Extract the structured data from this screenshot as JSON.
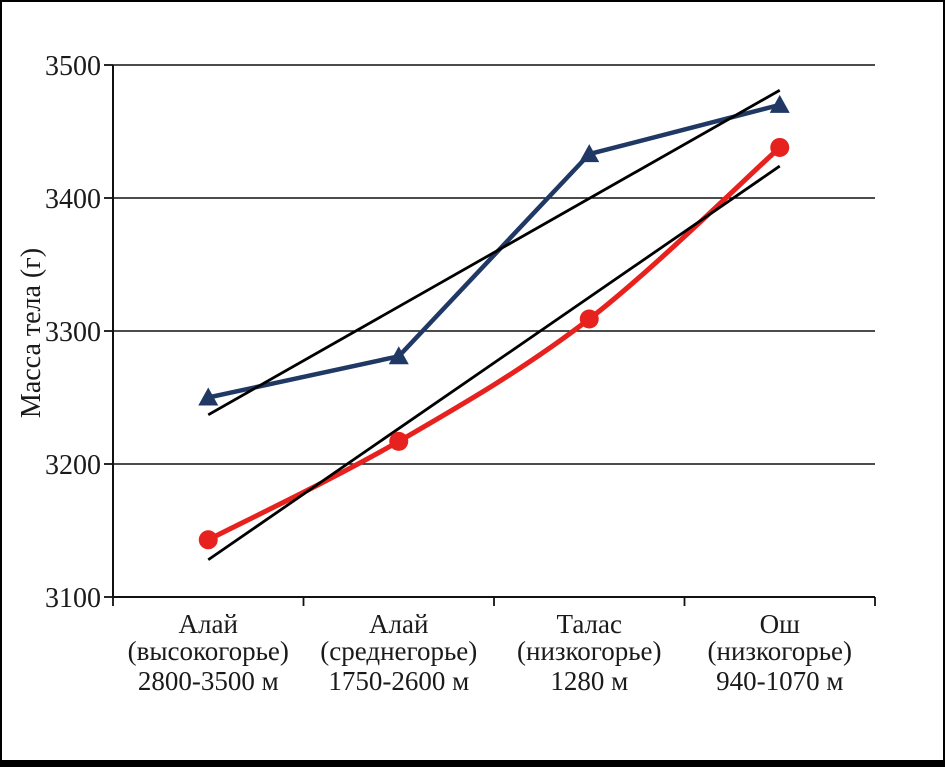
{
  "chart_data": {
    "type": "line",
    "ylabel": "Масса тела (г)",
    "grid": "horizontal",
    "legend": "none",
    "y_axis": {
      "min": 3100,
      "max": 3500,
      "tick_step": 100,
      "tick_values": [
        3500,
        3400,
        3300,
        3200,
        3100
      ],
      "tick_labels": [
        "3500",
        "3400",
        "3300",
        "3200",
        "3100"
      ]
    },
    "categories": [
      {
        "name_lines": [
          "Алай",
          "(высокогорье)"
        ],
        "altitude": "2800-3500 м"
      },
      {
        "name_lines": [
          "Алай",
          "(среднегорье)"
        ],
        "altitude": "1750-2600 м"
      },
      {
        "name_lines": [
          "Талас",
          "(низкогорье)"
        ],
        "altitude": "1280 м"
      },
      {
        "name_lines": [
          "Ош",
          "(низкогорье)"
        ],
        "altitude": "940-1070 м"
      }
    ],
    "series": [
      {
        "name": "blue-triangle-series",
        "marker": "triangle",
        "color": "#203864",
        "smooth": false,
        "values": [
          3250,
          3281,
          3433,
          3470
        ]
      },
      {
        "name": "red-circle-series",
        "marker": "circle",
        "color": "#E7221E",
        "smooth": true,
        "values": [
          3143,
          3217,
          3309,
          3438
        ]
      }
    ],
    "trendlines": [
      {
        "for": "blue-triangle-series",
        "color": "#000000",
        "start_value": 3237,
        "end_value": 3481
      },
      {
        "for": "red-circle-series",
        "color": "#000000",
        "start_value": 3128,
        "end_value": 3424
      }
    ]
  }
}
